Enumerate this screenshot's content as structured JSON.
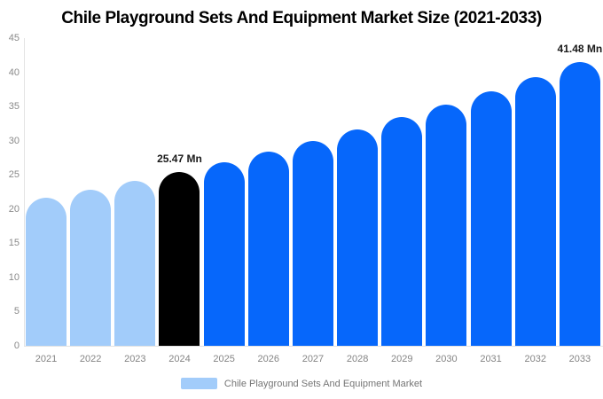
{
  "title": "Chile Playground Sets And Equipment Market Size (2021-2033)",
  "legend": {
    "label": "Chile Playground Sets And Equipment Market"
  },
  "colors": {
    "historical": "#A2CCFA",
    "current": "#000000",
    "forecast": "#0667FB",
    "axis_line": "#E3E3E3",
    "tick_text": "#8A8A8A",
    "annotation_text": "#1A1A1A",
    "background": "#FFFFFF"
  },
  "chart_data": {
    "type": "bar",
    "title": "Chile Playground Sets And Equipment Market Size (2021-2033)",
    "unit": "Mn",
    "categories": [
      "2021",
      "2022",
      "2023",
      "2024",
      "2025",
      "2026",
      "2027",
      "2028",
      "2029",
      "2030",
      "2031",
      "2032",
      "2033"
    ],
    "values": [
      21.64,
      22.85,
      24.12,
      25.47,
      26.89,
      28.39,
      29.97,
      31.64,
      33.4,
      35.26,
      37.23,
      39.3,
      41.48
    ],
    "segments": [
      "historical",
      "historical",
      "historical",
      "current",
      "forecast",
      "forecast",
      "forecast",
      "forecast",
      "forecast",
      "forecast",
      "forecast",
      "forecast",
      "forecast"
    ],
    "annotations": [
      {
        "index": 3,
        "text": "25.47 Mn"
      },
      {
        "index": 12,
        "text": "41.48 Mn"
      }
    ],
    "xlabel": "",
    "ylabel": "",
    "ylim": [
      0,
      45
    ],
    "yticks": [
      0,
      5,
      10,
      15,
      20,
      25,
      30,
      35,
      40,
      45
    ],
    "grid": false,
    "legend_entries": [
      "Chile Playground Sets And Equipment Market"
    ],
    "legend_position": "bottom"
  }
}
